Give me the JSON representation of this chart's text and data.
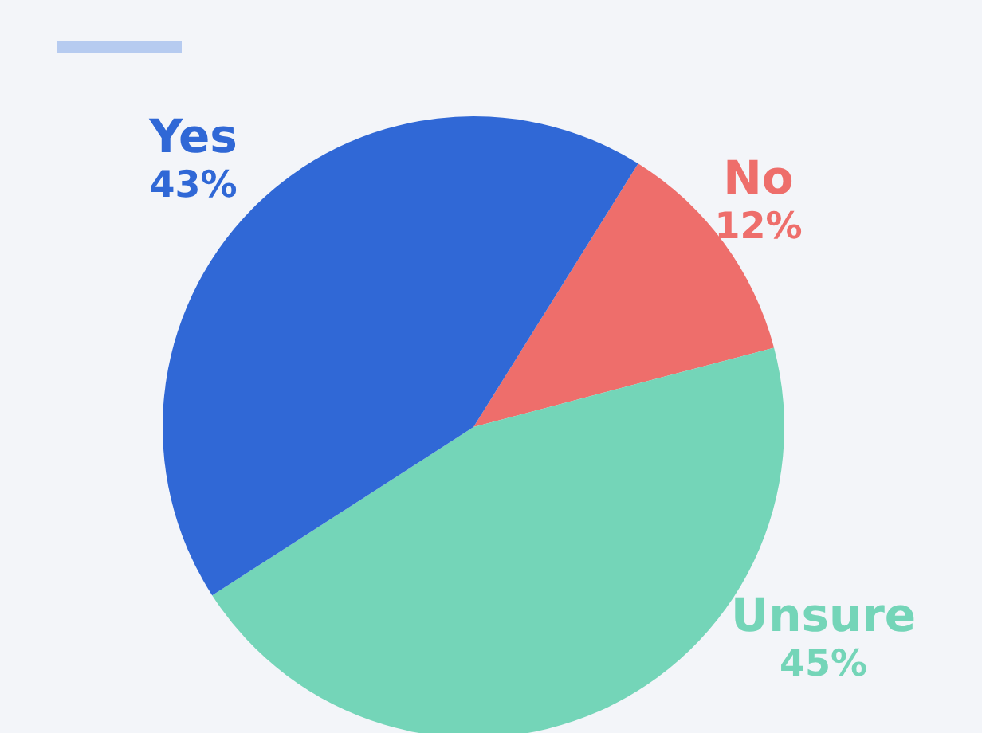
{
  "chart_data": {
    "type": "pie",
    "categories": [
      "No",
      "Unsure",
      "Yes"
    ],
    "values": [
      12,
      45,
      43
    ],
    "value_labels": [
      "12%",
      "45%",
      "43%"
    ],
    "colors": [
      "#ee6e6b",
      "#74d5b8",
      "#3068d6"
    ],
    "legend": false
  }
}
